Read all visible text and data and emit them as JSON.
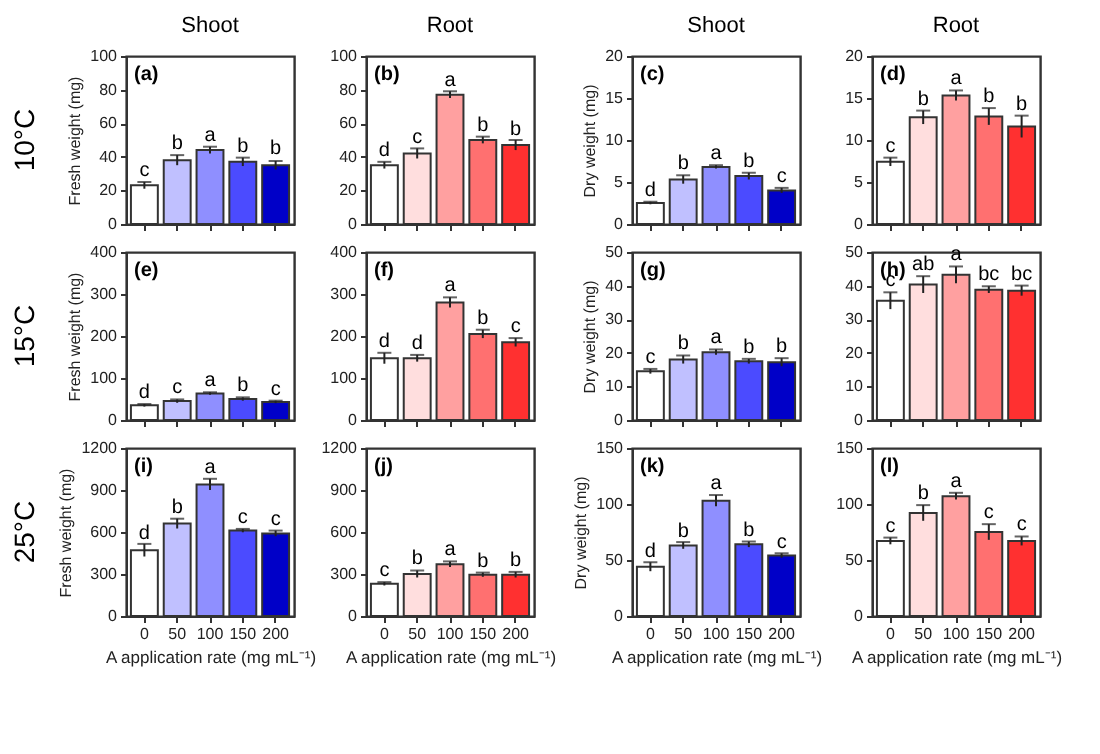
{
  "chart_data": [
    {
      "type": "bar",
      "title": "Shoot",
      "ylabel": "Fresh weight (mg)",
      "categories": [
        "0",
        "50",
        "100",
        "150",
        "200"
      ],
      "values": [
        23,
        38,
        44,
        37,
        35
      ],
      "errors": [
        2,
        3,
        2,
        2.5,
        2.5
      ],
      "colors": [
        "#ffffff",
        "#c0c0ff",
        "#8f8fff",
        "#4b4bff",
        "#0000c8"
      ],
      "ylim": [
        0,
        100
      ],
      "yticks": [
        0,
        20,
        40,
        60,
        80,
        100
      ],
      "tick_labels": "y",
      "annotations": [
        "(a)",
        "10°C",
        {
          "text": "c",
          "x": "0",
          "y": 25
        },
        {
          "text": "b",
          "x": "50",
          "y": 41
        },
        {
          "text": "a",
          "x": "100",
          "y": 46
        },
        {
          "text": "b",
          "x": "150",
          "y": 39.5
        },
        {
          "text": "b",
          "x": "200",
          "y": 38
        }
      ]
    },
    {
      "type": "bar",
      "title": "Root",
      "categories": [
        "0",
        "50",
        "100",
        "150",
        "200"
      ],
      "values": [
        35,
        42,
        77,
        50,
        47
      ],
      "errors": [
        2,
        3,
        2,
        2,
        3
      ],
      "colors": [
        "#ffffff",
        "#ffdede",
        "#ffa0a0",
        "#ff7070",
        "#ff3030"
      ],
      "ylim": [
        0,
        100
      ],
      "yticks": [
        0,
        20,
        40,
        60,
        80,
        100
      ],
      "tick_labels": "y",
      "annotations": [
        "(b)",
        {
          "text": "d",
          "x": "0",
          "y": 37
        },
        {
          "text": "c",
          "x": "50",
          "y": 44.5
        },
        {
          "text": "a",
          "x": "100",
          "y": 78.5
        },
        {
          "text": "b",
          "x": "150",
          "y": 52
        },
        {
          "text": "b",
          "x": "200",
          "y": 49.5
        }
      ]
    },
    {
      "type": "bar",
      "title": "Shoot",
      "ylabel": "Dry weight (mg)",
      "categories": [
        "0",
        "50",
        "100",
        "150",
        "200"
      ],
      "values": [
        2.5,
        5.3,
        6.8,
        5.7,
        4.0
      ],
      "errors": [
        0.15,
        0.5,
        0.2,
        0.4,
        0.3
      ],
      "colors": [
        "#ffffff",
        "#c0c0ff",
        "#8f8fff",
        "#4b4bff",
        "#0000c8"
      ],
      "ylim": [
        0,
        20
      ],
      "yticks": [
        0,
        5,
        10,
        15,
        20
      ],
      "tick_labels": "y",
      "annotations": [
        "(c)",
        {
          "text": "d",
          "x": "0",
          "y": 2.65
        },
        {
          "text": "b",
          "x": "50",
          "y": 5.8
        },
        {
          "text": "a",
          "x": "100",
          "y": 7
        },
        {
          "text": "b",
          "x": "150",
          "y": 6.1
        },
        {
          "text": "c",
          "x": "200",
          "y": 4.3
        }
      ]
    },
    {
      "type": "bar",
      "title": "Root",
      "categories": [
        "0",
        "50",
        "100",
        "150",
        "200"
      ],
      "values": [
        7.4,
        12.7,
        15.3,
        12.8,
        11.6
      ],
      "errors": [
        0.5,
        0.8,
        0.6,
        1.0,
        1.3
      ],
      "colors": [
        "#ffffff",
        "#ffdede",
        "#ffa0a0",
        "#ff7070",
        "#ff3030"
      ],
      "ylim": [
        0,
        20
      ],
      "yticks": [
        0,
        5,
        10,
        15,
        20
      ],
      "tick_labels": "y",
      "annotations": [
        "(d)",
        {
          "text": "c",
          "x": "0",
          "y": 7.9
        },
        {
          "text": "b",
          "x": "50",
          "y": 13.5
        },
        {
          "text": "a",
          "x": "100",
          "y": 15.9
        },
        {
          "text": "b",
          "x": "150",
          "y": 13.8
        },
        {
          "text": "b",
          "x": "200",
          "y": 12.9
        }
      ]
    },
    {
      "type": "bar",
      "ylabel": "Fresh weight (mg)",
      "categories": [
        "0",
        "50",
        "100",
        "150",
        "200"
      ],
      "values": [
        35,
        45,
        63,
        50,
        43
      ],
      "errors": [
        3,
        4,
        3,
        4,
        3
      ],
      "colors": [
        "#ffffff",
        "#c0c0ff",
        "#8f8fff",
        "#4b4bff",
        "#0000c8"
      ],
      "ylim": [
        0,
        400
      ],
      "yticks": [
        0,
        100,
        200,
        300,
        400
      ],
      "tick_labels": "y",
      "annotations": [
        "(e)",
        "15°C",
        {
          "text": "d",
          "x": "0",
          "y": 38
        },
        {
          "text": "c",
          "x": "50",
          "y": 49
        },
        {
          "text": "a",
          "x": "100",
          "y": 66
        },
        {
          "text": "b",
          "x": "150",
          "y": 54
        },
        {
          "text": "c",
          "x": "200",
          "y": 46
        }
      ]
    },
    {
      "type": "bar",
      "categories": [
        "0",
        "50",
        "100",
        "150",
        "200"
      ],
      "values": [
        147,
        147,
        280,
        205,
        185
      ],
      "errors": [
        13,
        8,
        12,
        10,
        10
      ],
      "colors": [
        "#ffffff",
        "#ffdede",
        "#ffa0a0",
        "#ff7070",
        "#ff3030"
      ],
      "ylim": [
        0,
        400
      ],
      "yticks": [
        0,
        100,
        200,
        300,
        400
      ],
      "tick_labels": "y",
      "annotations": [
        "(f)",
        {
          "text": "d",
          "x": "0",
          "y": 160
        },
        {
          "text": "d",
          "x": "50",
          "y": 155
        },
        {
          "text": "a",
          "x": "100",
          "y": 292
        },
        {
          "text": "b",
          "x": "150",
          "y": 215
        },
        {
          "text": "c",
          "x": "200",
          "y": 195
        }
      ]
    },
    {
      "type": "bar",
      "ylabel": "Dry weight (mg)",
      "categories": [
        "0",
        "50",
        "100",
        "150",
        "200"
      ],
      "values": [
        14.5,
        18,
        20.2,
        17.5,
        17.2
      ],
      "errors": [
        0.7,
        1.2,
        0.8,
        0.7,
        1.2
      ],
      "colors": [
        "#ffffff",
        "#c0c0ff",
        "#8f8fff",
        "#4b4bff",
        "#0000c8"
      ],
      "ylim": [
        0,
        50
      ],
      "yticks": [
        0,
        10,
        20,
        30,
        40,
        50
      ],
      "tick_labels": "y",
      "annotations": [
        "(g)",
        {
          "text": "c",
          "x": "0",
          "y": 15.2
        },
        {
          "text": "b",
          "x": "50",
          "y": 19.2
        },
        {
          "text": "a",
          "x": "100",
          "y": 21
        },
        {
          "text": "b",
          "x": "150",
          "y": 18.2
        },
        {
          "text": "b",
          "x": "200",
          "y": 18.4
        }
      ]
    },
    {
      "type": "bar",
      "categories": [
        "0",
        "50",
        "100",
        "150",
        "200"
      ],
      "values": [
        35.5,
        40.3,
        43.2,
        38.8,
        38.5
      ],
      "errors": [
        2.5,
        2.5,
        2.5,
        1,
        1.5
      ],
      "colors": [
        "#ffffff",
        "#ffdede",
        "#ffa0a0",
        "#ff7070",
        "#ff3030"
      ],
      "ylim": [
        0,
        50
      ],
      "yticks": [
        0,
        10,
        20,
        30,
        40,
        50
      ],
      "tick_labels": "y",
      "annotations": [
        "(h)",
        {
          "text": "c",
          "x": "0",
          "y": 38
        },
        {
          "text": "ab",
          "x": "50",
          "y": 42.8
        },
        {
          "text": "a",
          "x": "100",
          "y": 45.7
        },
        {
          "text": "bc",
          "x": "150",
          "y": 39.8
        },
        {
          "text": "bc",
          "x": "200",
          "y": 40
        }
      ]
    },
    {
      "type": "bar",
      "xlabel": "A application rate (mg mL⁻¹)",
      "ylabel": "Fresh weight (mg)",
      "categories": [
        "0",
        "50",
        "100",
        "150",
        "200"
      ],
      "values": [
        470,
        660,
        940,
        610,
        590
      ],
      "errors": [
        45,
        35,
        40,
        12,
        20
      ],
      "colors": [
        "#ffffff",
        "#c0c0ff",
        "#8f8fff",
        "#4b4bff",
        "#0000c8"
      ],
      "ylim": [
        0,
        1200
      ],
      "yticks": [
        0,
        300,
        600,
        900,
        1200
      ],
      "annotations": [
        "(i)",
        "25°C",
        {
          "text": "d",
          "x": "0",
          "y": 510
        },
        {
          "text": "b",
          "x": "50",
          "y": 695
        },
        {
          "text": "a",
          "x": "100",
          "y": 980
        },
        {
          "text": "c",
          "x": "150",
          "y": 622
        },
        {
          "text": "c",
          "x": "200",
          "y": 610
        }
      ]
    },
    {
      "type": "bar",
      "xlabel": "A application rate (mg mL⁻¹)",
      "categories": [
        "0",
        "50",
        "100",
        "150",
        "200"
      ],
      "values": [
        230,
        300,
        370,
        295,
        295
      ],
      "errors": [
        12,
        25,
        20,
        15,
        20
      ],
      "colors": [
        "#ffffff",
        "#ffdede",
        "#ffa0a0",
        "#ff7070",
        "#ff3030"
      ],
      "ylim": [
        0,
        1200
      ],
      "yticks": [
        0,
        300,
        600,
        900,
        1200
      ],
      "annotations": [
        "(j)",
        {
          "text": "c",
          "x": "0",
          "y": 242
        },
        {
          "text": "b",
          "x": "50",
          "y": 330
        },
        {
          "text": "a",
          "x": "100",
          "y": 390
        },
        {
          "text": "b",
          "x": "150",
          "y": 310
        },
        {
          "text": "b",
          "x": "200",
          "y": 315
        }
      ]
    },
    {
      "type": "bar",
      "xlabel": "A application rate (mg mL⁻¹)",
      "ylabel": "Dry weight (mg)",
      "categories": [
        "0",
        "50",
        "100",
        "150",
        "200"
      ],
      "values": [
        44,
        63,
        103,
        64,
        54
      ],
      "errors": [
        4,
        3,
        5,
        2.5,
        2
      ],
      "colors": [
        "#ffffff",
        "#c0c0ff",
        "#8f8fff",
        "#4b4bff",
        "#0000c8"
      ],
      "ylim": [
        0,
        150
      ],
      "yticks": [
        0,
        50,
        100,
        150
      ],
      "annotations": [
        "(k)",
        {
          "text": "d",
          "x": "0",
          "y": 47.5
        },
        {
          "text": "b",
          "x": "50",
          "y": 65.5
        },
        {
          "text": "a",
          "x": "100",
          "y": 108
        },
        {
          "text": "b",
          "x": "150",
          "y": 66
        },
        {
          "text": "c",
          "x": "200",
          "y": 55.5
        }
      ]
    },
    {
      "type": "bar",
      "xlabel": "A application rate (mg mL⁻¹)",
      "categories": [
        "0",
        "50",
        "100",
        "150",
        "200"
      ],
      "values": [
        67,
        92,
        107,
        75,
        67
      ],
      "errors": [
        3,
        7,
        3,
        7,
        4
      ],
      "colors": [
        "#ffffff",
        "#ffdede",
        "#ffa0a0",
        "#ff7070",
        "#ff3030"
      ],
      "ylim": [
        0,
        150
      ],
      "yticks": [
        0,
        50,
        100,
        150
      ],
      "annotations": [
        "(l)",
        {
          "text": "c",
          "x": "0",
          "y": 69.5
        },
        {
          "text": "b",
          "x": "50",
          "y": 99
        },
        {
          "text": "a",
          "x": "100",
          "y": 110
        },
        {
          "text": "c",
          "x": "150",
          "y": 82
        },
        {
          "text": "c",
          "x": "200",
          "y": 71
        }
      ]
    }
  ]
}
